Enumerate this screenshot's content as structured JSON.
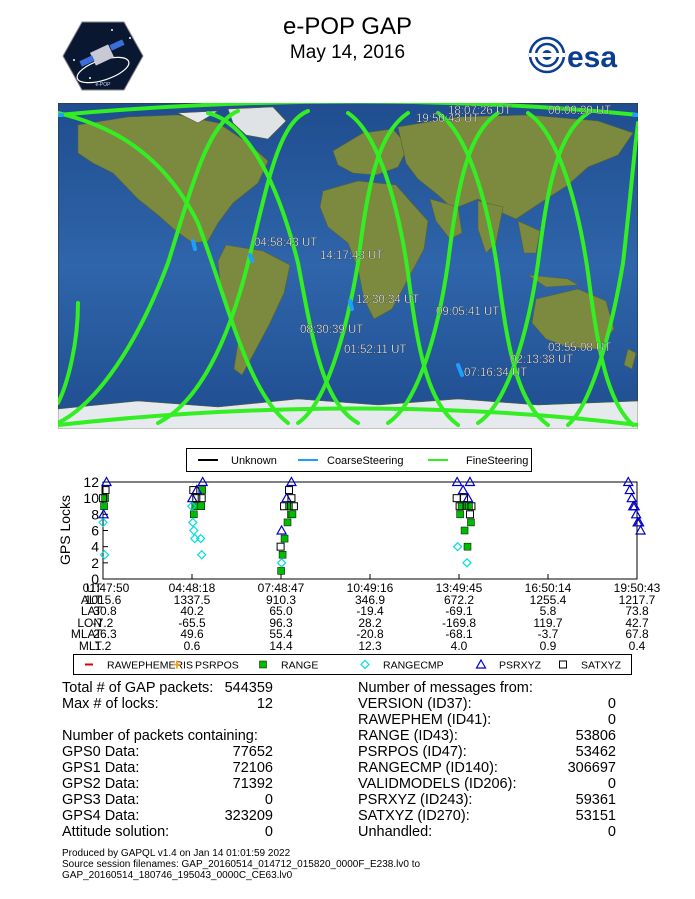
{
  "header": {
    "title": "e-POP GAP",
    "date": "May 14, 2016",
    "esa_logo_text": "esa"
  },
  "colors": {
    "unknown": "#000000",
    "coarse": "#1e9fff",
    "fine": "#33ee22",
    "ocean": "#2c5fa6",
    "land": "#7a8a3c"
  },
  "map": {
    "time_labels": [
      "18:07:26 UT",
      "19:50:43 UT",
      "04:58:43 UT",
      "14:17:43 UT",
      "12:30:34 UT",
      "09:05:41 UT",
      "08:30:39 UT",
      "01:52:11 UT",
      "07:16:34 UT",
      "02:13:38 UT",
      "03:55:08 UT",
      "00:00:20 UT"
    ],
    "legend": [
      "Unknown",
      "CoarseSteering",
      "FineSteering"
    ]
  },
  "chart_data": {
    "type": "scatter",
    "ylabel": "GPS Locks",
    "ylim": [
      0,
      12
    ],
    "yticks": [
      0,
      2,
      4,
      6,
      8,
      10,
      12
    ],
    "series": [
      {
        "name": "RAWEPHEMERIS",
        "color": "#dd0000",
        "marker": "dash",
        "points": []
      },
      {
        "name": "PSRPOS",
        "color": "#ff9900",
        "marker": "plus",
        "points": []
      },
      {
        "name": "RANGE",
        "color": "#00bb00",
        "marker": "filled-square",
        "points": [
          [
            "01:50",
            9
          ],
          [
            "01:52",
            10
          ],
          [
            "04:52",
            8
          ],
          [
            "04:55",
            9
          ],
          [
            "05:07",
            9
          ],
          [
            "05:09",
            11
          ],
          [
            "07:49",
            1
          ],
          [
            "07:52",
            3
          ],
          [
            "07:56",
            5
          ],
          [
            "08:02",
            7
          ],
          [
            "08:05",
            9
          ],
          [
            "08:09",
            8
          ],
          [
            "08:12",
            8
          ],
          [
            "13:52",
            8
          ],
          [
            "13:55",
            9
          ],
          [
            "14:01",
            6
          ],
          [
            "14:07",
            4
          ],
          [
            "14:10",
            9
          ],
          [
            "14:14",
            7
          ]
        ]
      },
      {
        "name": "RANGECMP",
        "color": "#00dddd",
        "marker": "diamond",
        "points": [
          [
            "01:48",
            7
          ],
          [
            "01:51",
            3
          ],
          [
            "04:48",
            9
          ],
          [
            "04:50",
            7
          ],
          [
            "04:52",
            6
          ],
          [
            "04:54",
            5
          ],
          [
            "05:06",
            5
          ],
          [
            "05:08",
            3
          ],
          [
            "07:50",
            2
          ],
          [
            "13:47",
            4
          ],
          [
            "14:06",
            2
          ]
        ]
      },
      {
        "name": "PSRXYZ",
        "color": "#0000cc",
        "marker": "triangle",
        "points": [
          [
            "01:49",
            8
          ],
          [
            "01:55",
            12
          ],
          [
            "04:49",
            10
          ],
          [
            "04:58",
            11
          ],
          [
            "05:10",
            12
          ],
          [
            "07:50",
            6
          ],
          [
            "08:00",
            10
          ],
          [
            "08:10",
            12
          ],
          [
            "13:46",
            12
          ],
          [
            "13:58",
            11
          ],
          [
            "14:08",
            10
          ],
          [
            "14:12",
            12
          ],
          [
            "19:33",
            12
          ],
          [
            "19:36",
            11
          ],
          [
            "19:40",
            10
          ],
          [
            "19:43",
            9
          ],
          [
            "19:46",
            9
          ],
          [
            "19:49",
            8
          ],
          [
            "19:52",
            7
          ],
          [
            "19:55",
            7
          ],
          [
            "19:58",
            6
          ]
        ]
      },
      {
        "name": "SATXYZ",
        "color": "#000000",
        "marker": "square",
        "points": [
          [
            "01:48",
            10
          ],
          [
            "01:53",
            11
          ],
          [
            "04:51",
            11
          ],
          [
            "04:57",
            10
          ],
          [
            "05:08",
            10
          ],
          [
            "07:48",
            4
          ],
          [
            "07:55",
            9
          ],
          [
            "08:05",
            11
          ],
          [
            "08:10",
            10
          ],
          [
            "08:15",
            9
          ],
          [
            "13:45",
            10
          ],
          [
            "13:51",
            9
          ],
          [
            "14:00",
            10
          ],
          [
            "14:12",
            8
          ],
          [
            "14:15",
            9
          ]
        ]
      }
    ],
    "ephemeris_table": {
      "rows": [
        {
          "label": "UT",
          "values": [
            "01:47:50",
            "04:48:18",
            "07:48:47",
            "10:49:16",
            "13:49:45",
            "16:50:14",
            "19:50:43"
          ]
        },
        {
          "label": "ALT",
          "values": [
            "1015.6",
            "1337.5",
            "910.3",
            "346.9",
            "672.2",
            "1255.4",
            "1217.7"
          ]
        },
        {
          "label": "LAT",
          "values": [
            "-30.8",
            "40.2",
            "65.0",
            "-19.4",
            "-69.1",
            "5.8",
            "73.8"
          ]
        },
        {
          "label": "LON",
          "values": [
            "-7.2",
            "-65.5",
            "96.3",
            "28.2",
            "-169.8",
            "119.7",
            "42.7"
          ]
        },
        {
          "label": "MLAT",
          "values": [
            "-26.3",
            "49.6",
            "55.4",
            "-20.8",
            "-68.1",
            "-3.7",
            "67.8"
          ]
        },
        {
          "label": "MLT",
          "values": [
            "1.2",
            "0.6",
            "14.4",
            "12.3",
            "4.0",
            "0.9",
            "0.4"
          ]
        }
      ]
    }
  },
  "stats": {
    "total_packets_label": "Total # of GAP packets:",
    "total_packets": "544359",
    "max_locks_label": "Max # of locks:",
    "max_locks": "12",
    "containing_header": "Number of packets containing:",
    "containing": [
      {
        "label": "GPS0 Data:",
        "value": "77652"
      },
      {
        "label": "GPS1 Data:",
        "value": "72106"
      },
      {
        "label": "GPS2 Data:",
        "value": "71392"
      },
      {
        "label": "GPS3 Data:",
        "value": "0"
      },
      {
        "label": "GPS4 Data:",
        "value": "323209"
      },
      {
        "label": "Attitude solution:",
        "value": "0"
      }
    ],
    "messages_header": "Number of messages from:",
    "messages": [
      {
        "label": "VERSION (ID37):",
        "value": "0"
      },
      {
        "label": "RAWEPHEM (ID41):",
        "value": "0"
      },
      {
        "label": "RANGE (ID43):",
        "value": "53806"
      },
      {
        "label": "PSRPOS (ID47):",
        "value": "53462"
      },
      {
        "label": "RANGECMP (ID140):",
        "value": "306697"
      },
      {
        "label": "VALIDMODELS (ID206):",
        "value": "0"
      },
      {
        "label": "PSRXYZ (ID243):",
        "value": "59361"
      },
      {
        "label": "SATXYZ (ID270):",
        "value": "53151"
      },
      {
        "label": "Unhandled:",
        "value": "0"
      }
    ]
  },
  "footer": {
    "line1": "Produced by GAPQL v1.4 on Jan 14 01:01:59 2022",
    "line2": "Source session filenames: GAP_20160514_014712_015820_0000F_E238.lv0 to",
    "line3": "GAP_20160514_180746_195043_0000C_CE63.lv0"
  }
}
